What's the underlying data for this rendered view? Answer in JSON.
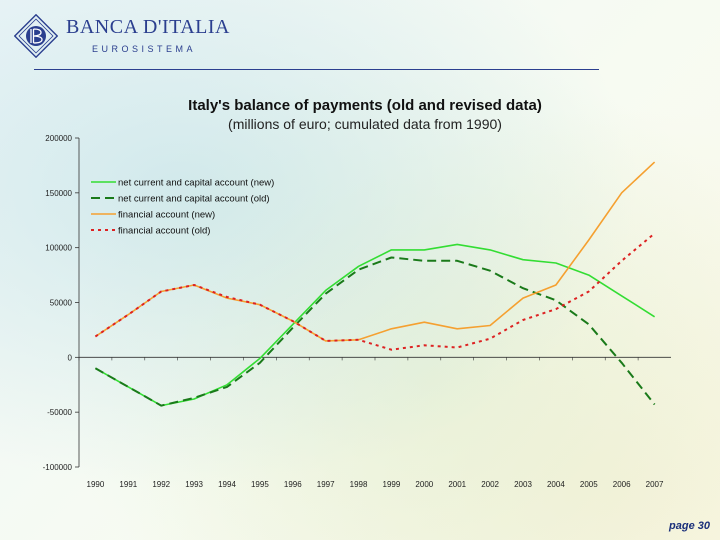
{
  "header": {
    "logo_title": "BANCA D'ITALIA",
    "logo_subtitle": "EUROSISTEMA",
    "brand_color": "#2b3f8f"
  },
  "page_number": "page 30",
  "chart_data": {
    "type": "line",
    "title": "Italy's balance of payments (old and revised data)",
    "subtitle": "(millions of euro; cumulated data from 1990)",
    "xlabel": "",
    "ylabel": "",
    "categories": [
      "1990",
      "1991",
      "1992",
      "1993",
      "1994",
      "1995",
      "1996",
      "1997",
      "1998",
      "1999",
      "2000",
      "2001",
      "2002",
      "2003",
      "2004",
      "2005",
      "2006",
      "2007"
    ],
    "ylim": [
      -100000,
      200000
    ],
    "yticks": [
      200000,
      150000,
      100000,
      50000,
      0,
      -50000,
      -100000
    ],
    "ytick_labels": [
      "200000",
      "150000",
      "100000",
      "50000",
      "0",
      "-50000",
      "-100000"
    ],
    "grid": false,
    "legend_position": "top-left",
    "series": [
      {
        "name": "net current and capital account (new)",
        "color": "#33dd33",
        "style": "solid",
        "values": [
          -10000,
          -27000,
          -44000,
          -38000,
          -25000,
          -1000,
          30000,
          61000,
          83000,
          98000,
          98000,
          103000,
          98000,
          89000,
          86000,
          75000,
          56000,
          37000
        ]
      },
      {
        "name": "net current and capital account (old)",
        "color": "#1a7a1a",
        "style": "dashed",
        "values": [
          -10000,
          -27000,
          -44000,
          -37000,
          -27000,
          -5000,
          27000,
          58000,
          80000,
          91000,
          88000,
          88000,
          79000,
          63000,
          52000,
          30000,
          -5000,
          -43000
        ]
      },
      {
        "name": "financial account (new)",
        "color": "#f5a030",
        "style": "solid",
        "values": [
          19000,
          39000,
          60000,
          66000,
          54000,
          48000,
          33000,
          15000,
          16000,
          26000,
          32000,
          26000,
          29000,
          54000,
          66000,
          107000,
          150000,
          178000
        ]
      },
      {
        "name": "financial account (old)",
        "color": "#dd2222",
        "style": "dotted",
        "values": [
          19000,
          39000,
          60000,
          66000,
          55000,
          48000,
          33000,
          15000,
          16000,
          7000,
          11000,
          9000,
          17000,
          34000,
          44000,
          60000,
          88000,
          113000
        ]
      }
    ]
  }
}
